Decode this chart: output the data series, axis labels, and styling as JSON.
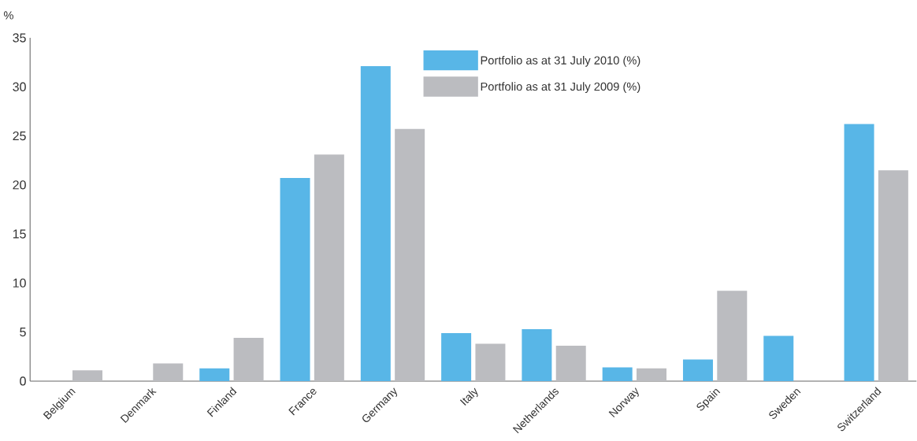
{
  "chart_data": {
    "type": "bar",
    "ylabel": "%",
    "categories": [
      "Belgium",
      "Denmark",
      "Finland",
      "France",
      "Germany",
      "Italy",
      "Netherlands",
      "Norway",
      "Spain",
      "Sweden",
      "Switzerland"
    ],
    "series": [
      {
        "name": "Portfolio as at 31 July 2010 (%)",
        "color": "#58b6e7",
        "values": [
          0,
          0,
          1.3,
          20.7,
          32.1,
          4.9,
          5.3,
          1.4,
          2.2,
          4.6,
          26.2
        ]
      },
      {
        "name": "Portfolio as at 31 July 2009 (%)",
        "color": "#bbbcc0",
        "values": [
          1.1,
          1.8,
          4.4,
          23.1,
          25.7,
          3.8,
          3.6,
          1.3,
          9.2,
          0,
          21.5
        ]
      }
    ],
    "ylim": [
      0,
      35
    ],
    "yticks": [
      0,
      5,
      10,
      15,
      20,
      25,
      30,
      35
    ],
    "grid": false,
    "legend": "top"
  }
}
